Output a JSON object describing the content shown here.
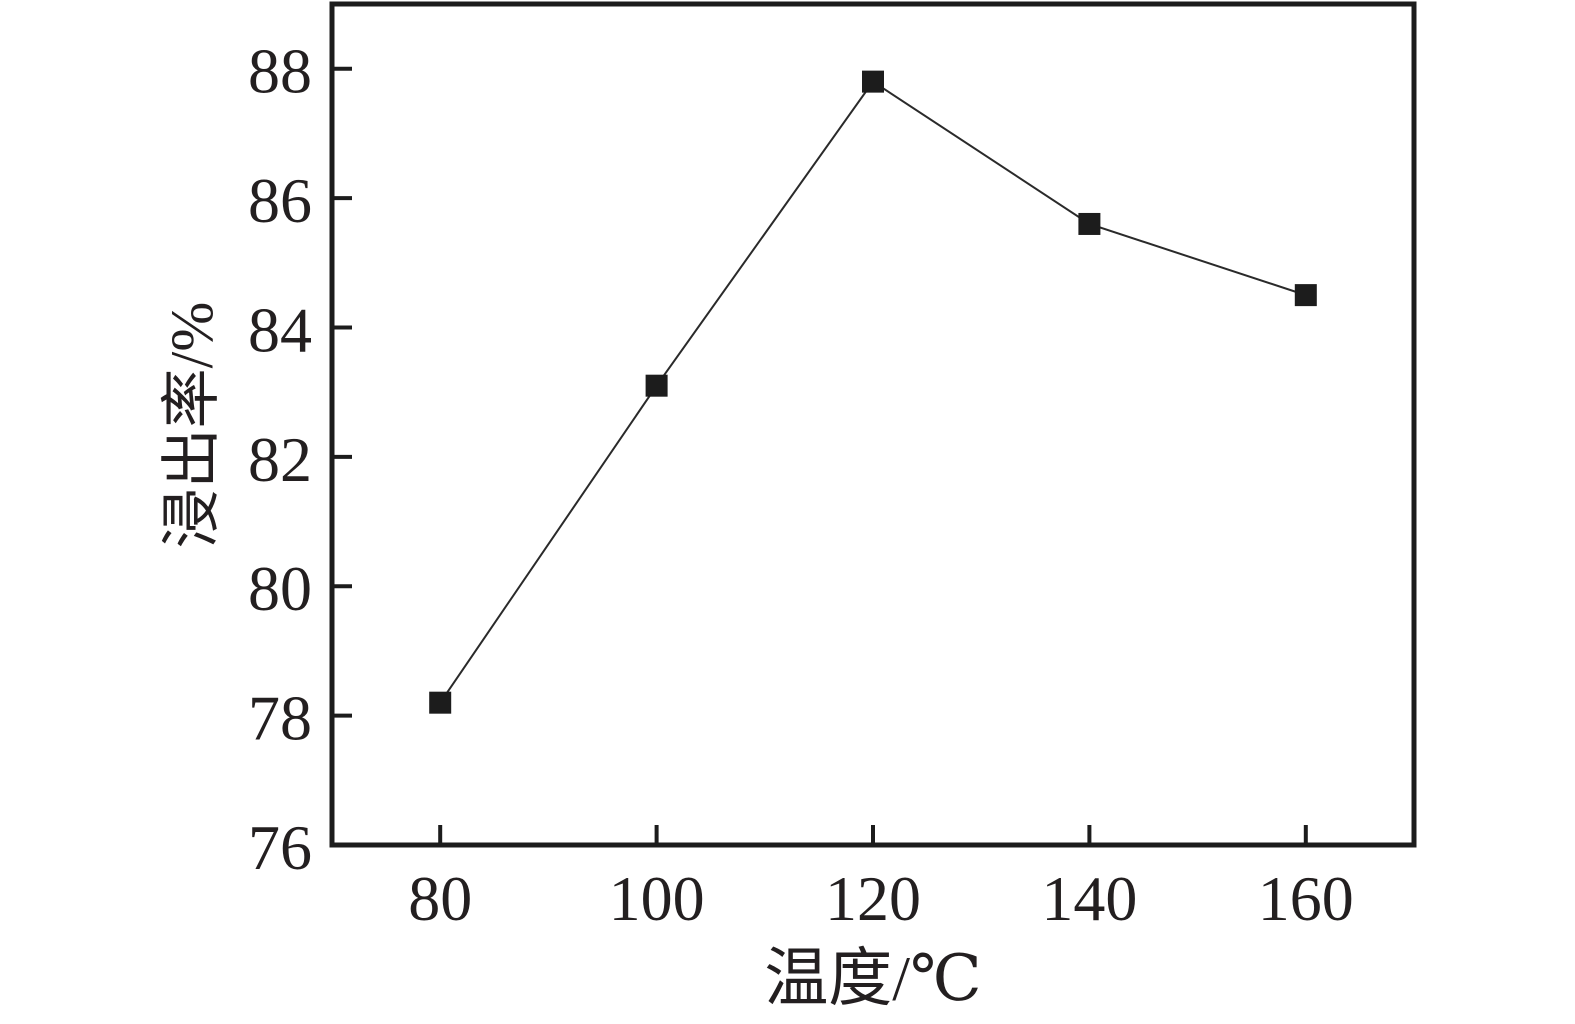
{
  "figure": {
    "background": "#ffffff"
  },
  "chart_data": {
    "type": "line",
    "title": "",
    "xlabel": "温度/℃",
    "ylabel": "浸出率/%",
    "x": [
      80,
      100,
      120,
      140,
      160
    ],
    "series": [
      {
        "name": "浸出率",
        "values": [
          78.2,
          83.1,
          87.8,
          85.6,
          84.5
        ]
      }
    ],
    "xlim": [
      70,
      170
    ],
    "ylim": [
      76,
      89
    ],
    "x_ticks": [
      80,
      100,
      120,
      140,
      160
    ],
    "y_ticks": [
      76,
      78,
      80,
      82,
      84,
      86,
      88
    ],
    "grid": false,
    "legend_position": "none",
    "marker": "filled-square",
    "marker_size": 22,
    "line_width": 2,
    "line_color": "#2a2a2a",
    "marker_color": "#1c1c1c",
    "axis_color": "#1c1c1c",
    "text_color": "#231f20"
  }
}
